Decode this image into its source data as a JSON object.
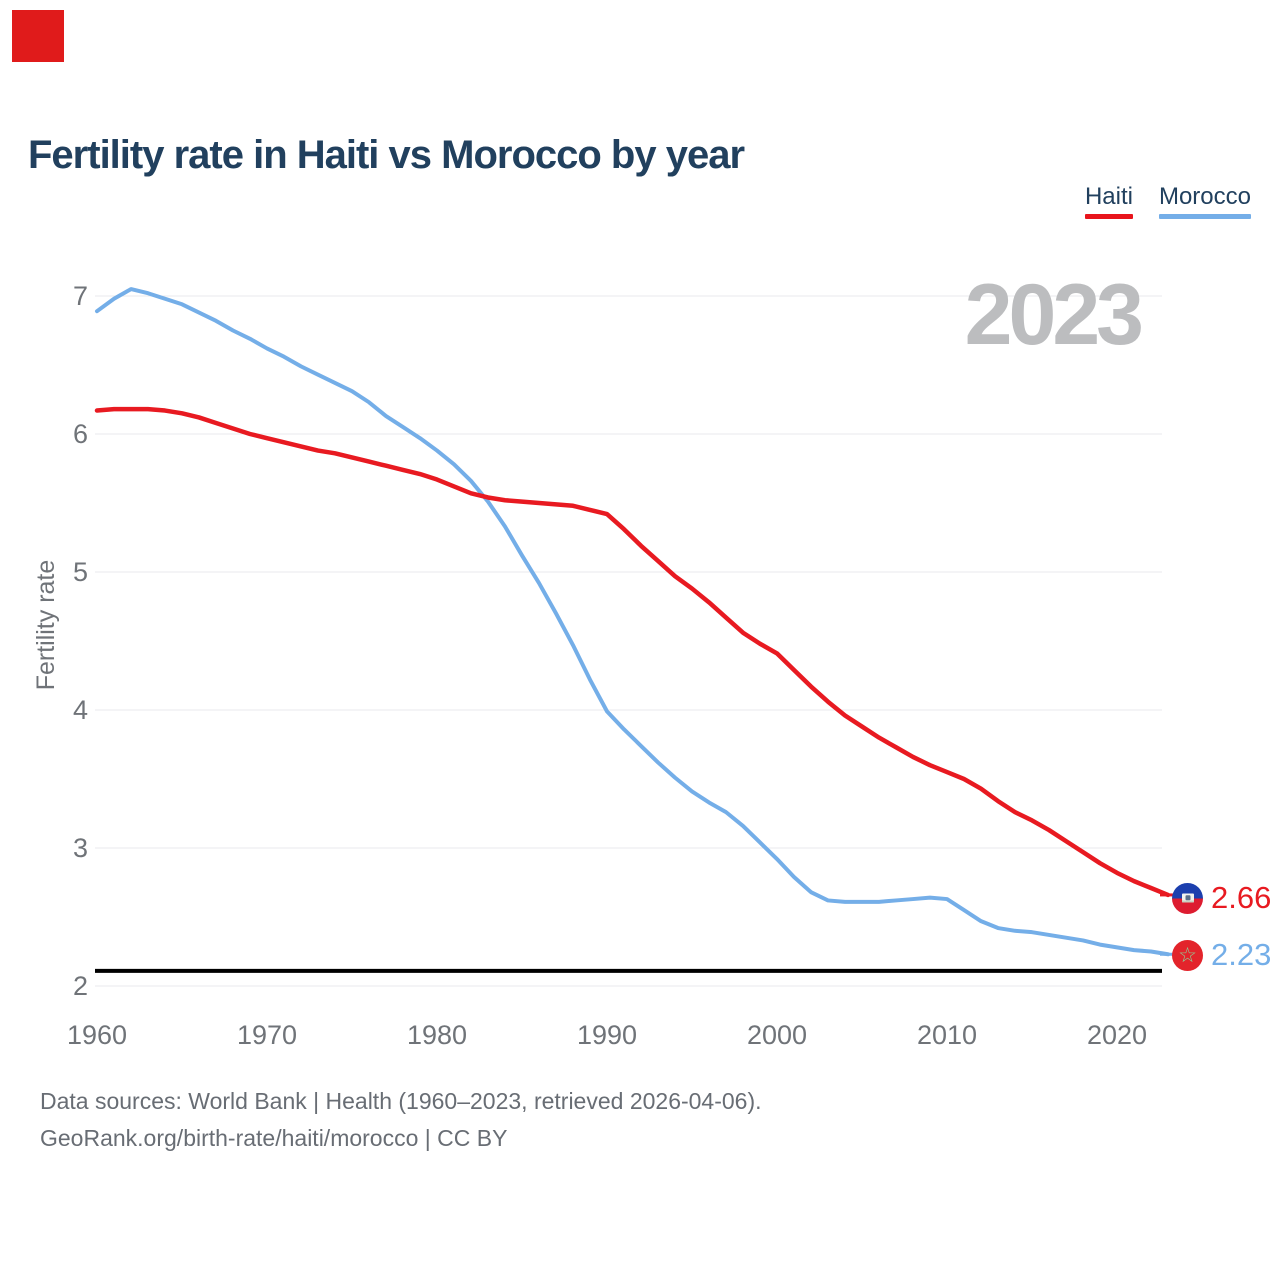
{
  "title": "Fertility rate in Haiti vs Morocco by year",
  "watermark": "2023",
  "decorations": {
    "top_left_marker_color": "#e01b1b"
  },
  "legend": {
    "items": [
      {
        "label": "Haiti",
        "color": "#e8141c",
        "icon": "red-underline"
      },
      {
        "label": "Morocco",
        "color": "#74aee8",
        "icon": "blue-underline"
      }
    ]
  },
  "y_axis": {
    "label": "Fertility rate",
    "ticks": [
      7,
      6,
      5,
      4,
      3,
      2
    ]
  },
  "x_axis": {
    "ticks": [
      1960,
      1970,
      1980,
      1990,
      2000,
      2010,
      2020
    ]
  },
  "end_labels": [
    {
      "series": "Haiti",
      "value": "2.66",
      "color": "#e81a21",
      "icon": "haiti-flag-icon"
    },
    {
      "series": "Morocco",
      "value": "2.23",
      "color": "#74aee8",
      "icon": "morocco-flag-icon"
    }
  ],
  "footer": {
    "line1": "Data sources: World Bank | Health (1960–2023, retrieved 2026-04-06).",
    "line2": "GeoRank.org/birth-rate/haiti/morocco | CC BY"
  },
  "chart_data": {
    "type": "line",
    "title": "Fertility rate in Haiti vs Morocco by year",
    "xlabel": "",
    "ylabel": "Fertility rate",
    "xlim": [
      1960,
      2023
    ],
    "ylim": [
      2,
      7
    ],
    "yticks": [
      2,
      3,
      4,
      5,
      6,
      7
    ],
    "xticks": [
      1960,
      1970,
      1980,
      1990,
      2000,
      2010,
      2020
    ],
    "grid": "horizontal",
    "grid_color": "#e9eaec",
    "legend_position": "top-right",
    "watermark": "2023",
    "reference_line": {
      "value": 2.11,
      "color": "#000000",
      "width": 4
    },
    "x": [
      1960,
      1961,
      1962,
      1963,
      1964,
      1965,
      1966,
      1967,
      1968,
      1969,
      1970,
      1971,
      1972,
      1973,
      1974,
      1975,
      1976,
      1977,
      1978,
      1979,
      1980,
      1981,
      1982,
      1983,
      1984,
      1985,
      1986,
      1987,
      1988,
      1989,
      1990,
      1991,
      1992,
      1993,
      1994,
      1995,
      1996,
      1997,
      1998,
      1999,
      2000,
      2001,
      2002,
      2003,
      2004,
      2005,
      2006,
      2007,
      2008,
      2009,
      2010,
      2011,
      2012,
      2013,
      2014,
      2015,
      2016,
      2017,
      2018,
      2019,
      2020,
      2021,
      2022,
      2023
    ],
    "series": [
      {
        "name": "Haiti",
        "color": "#e81a21",
        "width": 4.5,
        "end_label": "2.66",
        "values": [
          6.17,
          6.18,
          6.18,
          6.18,
          6.17,
          6.15,
          6.12,
          6.08,
          6.04,
          6.0,
          5.97,
          5.94,
          5.91,
          5.88,
          5.86,
          5.83,
          5.8,
          5.77,
          5.74,
          5.71,
          5.67,
          5.62,
          5.57,
          5.54,
          5.52,
          5.51,
          5.5,
          5.49,
          5.48,
          5.45,
          5.42,
          5.31,
          5.19,
          5.08,
          4.97,
          4.88,
          4.78,
          4.67,
          4.56,
          4.48,
          4.41,
          4.29,
          4.17,
          4.06,
          3.96,
          3.88,
          3.8,
          3.73,
          3.66,
          3.6,
          3.55,
          3.5,
          3.43,
          3.34,
          3.26,
          3.2,
          3.13,
          3.05,
          2.97,
          2.89,
          2.82,
          2.76,
          2.71,
          2.66
        ]
      },
      {
        "name": "Morocco",
        "color": "#74aee8",
        "width": 4,
        "end_label": "2.23",
        "values": [
          6.89,
          6.98,
          7.05,
          7.02,
          6.98,
          6.94,
          6.88,
          6.82,
          6.75,
          6.69,
          6.62,
          6.56,
          6.49,
          6.43,
          6.37,
          6.31,
          6.23,
          6.13,
          6.05,
          5.97,
          5.88,
          5.78,
          5.66,
          5.51,
          5.33,
          5.12,
          4.92,
          4.7,
          4.47,
          4.22,
          3.99,
          3.86,
          3.74,
          3.62,
          3.51,
          3.41,
          3.33,
          3.26,
          3.16,
          3.04,
          2.92,
          2.79,
          2.68,
          2.62,
          2.61,
          2.61,
          2.61,
          2.62,
          2.63,
          2.64,
          2.63,
          2.55,
          2.47,
          2.42,
          2.4,
          2.39,
          2.37,
          2.35,
          2.33,
          2.3,
          2.28,
          2.26,
          2.25,
          2.23
        ]
      }
    ]
  }
}
